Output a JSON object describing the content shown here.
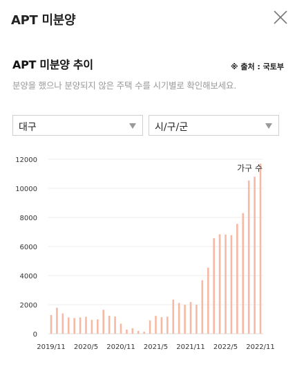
{
  "header": {
    "title": "APT 미분양",
    "close_icon": "close-icon"
  },
  "section": {
    "title": "APT 미분양 추이",
    "source": "※ 출처 : 국토부",
    "description": "분양을 했으나 분양되지 않은 주택 수를 시기별로 확인해보세요."
  },
  "filters": {
    "region": {
      "value": "대구"
    },
    "district": {
      "value": "시/구/군"
    }
  },
  "colors": {
    "bar": "#f6b9a4",
    "grid": "#eeeeee",
    "axis": "#dddddd"
  },
  "chart_data": {
    "type": "bar",
    "series": [
      {
        "name": "가구 수"
      }
    ],
    "categories": [
      "2019/11",
      "2019/12",
      "2020/1",
      "2020/2",
      "2020/3",
      "2020/4",
      "2020/5",
      "2020/6",
      "2020/7",
      "2020/8",
      "2020/9",
      "2020/10",
      "2020/11",
      "2020/12",
      "2021/1",
      "2021/2",
      "2021/3",
      "2021/4",
      "2021/5",
      "2021/6",
      "2021/7",
      "2021/8",
      "2021/9",
      "2021/10",
      "2021/11",
      "2021/12",
      "2022/1",
      "2022/2",
      "2022/3",
      "2022/4",
      "2022/5",
      "2022/6",
      "2022/7",
      "2022/8",
      "2022/9",
      "2022/10",
      "2022/11"
    ],
    "values": [
      1290,
      1790,
      1400,
      1120,
      1080,
      1120,
      1170,
      960,
      990,
      1650,
      1240,
      1190,
      700,
      290,
      380,
      200,
      140,
      920,
      1230,
      1140,
      1180,
      2350,
      2120,
      1990,
      2180,
      2000,
      3680,
      4550,
      6570,
      6840,
      6820,
      6780,
      7560,
      8300,
      10540,
      10800,
      11700
    ],
    "x_tick_labels": [
      "2019/11",
      "2020/5",
      "2020/11",
      "2021/5",
      "2021/11",
      "2022/5",
      "2022/11"
    ],
    "x_tick_indices": [
      0,
      6,
      12,
      18,
      24,
      30,
      36
    ],
    "y_ticks": [
      0,
      2000,
      4000,
      6000,
      8000,
      10000,
      12000
    ],
    "ylim": [
      0,
      12000
    ]
  }
}
